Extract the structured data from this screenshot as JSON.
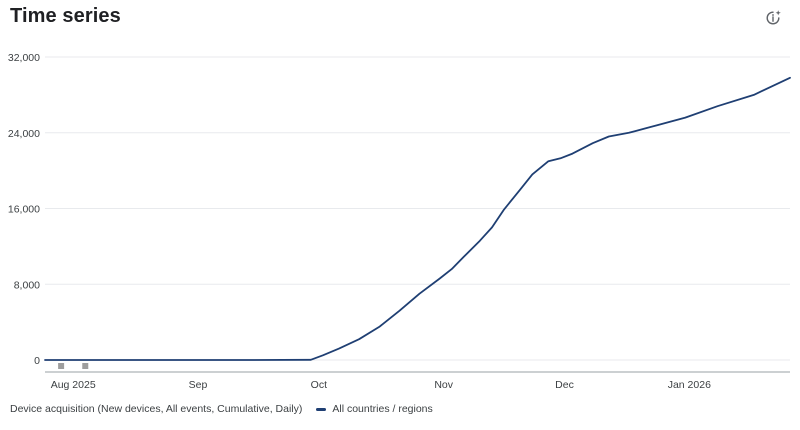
{
  "header": {
    "title": "Time series",
    "insight_icon": "sparkle-insight-icon"
  },
  "footer": {
    "metric_label": "Device acquisition (New devices, All events, Cumulative, Daily)",
    "legend_label": "All countries / regions"
  },
  "colors": {
    "series": "#1f3f73",
    "grid": "#e8eaed",
    "axis": "#9aa0a6",
    "marker": "#9e9e9e"
  },
  "chart_data": {
    "type": "line",
    "title": "Time series",
    "xlabel": "",
    "ylabel": "",
    "x_range": [
      "2025-07-25",
      "2026-01-26"
    ],
    "ylim": [
      0,
      32000
    ],
    "y_ticks": [
      0,
      8000,
      16000,
      24000,
      32000
    ],
    "y_tick_labels": [
      "0",
      "8,000",
      "16,000",
      "24,000",
      "32,000"
    ],
    "x_ticks": [
      "2025-08-01",
      "2025-09-01",
      "2025-10-01",
      "2025-11-01",
      "2025-12-01",
      "2026-01-01"
    ],
    "x_tick_labels": [
      "Aug 2025",
      "Sep",
      "Oct",
      "Nov",
      "Dec",
      "Jan 2026"
    ],
    "grid": true,
    "legend": "bottom",
    "event_markers": [
      "2025-07-29",
      "2025-08-04"
    ],
    "series": [
      {
        "name": "All countries / regions",
        "color": "#1f3f73",
        "points": [
          [
            "2025-07-25",
            0
          ],
          [
            "2025-08-15",
            5
          ],
          [
            "2025-09-15",
            5
          ],
          [
            "2025-09-29",
            20
          ],
          [
            "2025-10-02",
            500
          ],
          [
            "2025-10-06",
            1200
          ],
          [
            "2025-10-11",
            2200
          ],
          [
            "2025-10-16",
            3500
          ],
          [
            "2025-10-21",
            5200
          ],
          [
            "2025-10-26",
            7000
          ],
          [
            "2025-10-31",
            8600
          ],
          [
            "2025-11-03",
            9600
          ],
          [
            "2025-11-06",
            10900
          ],
          [
            "2025-11-10",
            12600
          ],
          [
            "2025-11-13",
            14000
          ],
          [
            "2025-11-16",
            15900
          ],
          [
            "2025-11-20",
            18000
          ],
          [
            "2025-11-23",
            19600
          ],
          [
            "2025-11-27",
            21000
          ],
          [
            "2025-11-30",
            21300
          ],
          [
            "2025-12-03",
            21800
          ],
          [
            "2025-12-08",
            22900
          ],
          [
            "2025-12-12",
            23600
          ],
          [
            "2025-12-17",
            24000
          ],
          [
            "2025-12-24",
            24800
          ],
          [
            "2025-12-31",
            25600
          ],
          [
            "2026-01-08",
            26800
          ],
          [
            "2026-01-17",
            28000
          ],
          [
            "2026-01-26",
            29800
          ]
        ]
      }
    ]
  }
}
